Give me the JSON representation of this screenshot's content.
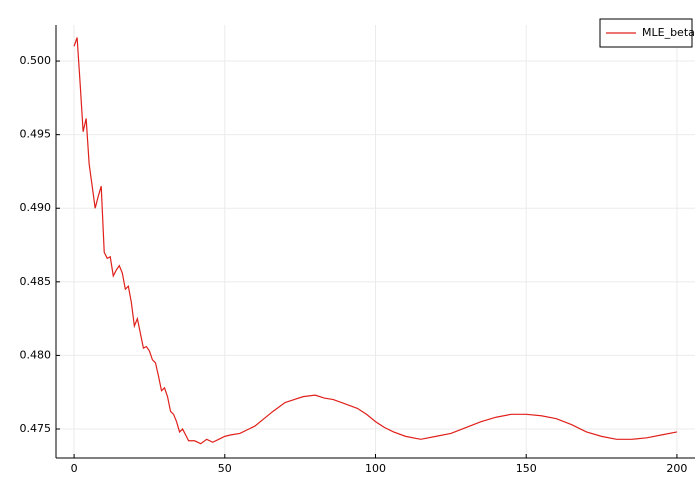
{
  "chart_data": {
    "type": "line",
    "x": [
      0,
      1,
      2,
      3,
      4,
      5,
      6,
      7,
      8,
      9,
      10,
      11,
      12,
      13,
      14,
      15,
      16,
      17,
      18,
      19,
      20,
      21,
      22,
      23,
      24,
      25,
      26,
      27,
      28,
      29,
      30,
      31,
      32,
      33,
      34,
      35,
      36,
      37,
      38,
      40,
      42,
      44,
      46,
      48,
      50,
      52,
      55,
      58,
      60,
      63,
      66,
      70,
      73,
      76,
      80,
      83,
      86,
      90,
      94,
      97,
      100,
      103,
      106,
      110,
      115,
      120,
      125,
      130,
      135,
      140,
      145,
      150,
      155,
      160,
      165,
      170,
      175,
      180,
      185,
      190,
      195,
      200
    ],
    "series": [
      {
        "name": "MLE_beta",
        "color": "#e0201b",
        "values": [
          0.501,
          0.5016,
          0.4985,
          0.4952,
          0.4961,
          0.493,
          0.4915,
          0.49,
          0.4908,
          0.4915,
          0.487,
          0.4866,
          0.4867,
          0.4854,
          0.4858,
          0.4861,
          0.4856,
          0.4845,
          0.4847,
          0.4836,
          0.482,
          0.4825,
          0.4815,
          0.4805,
          0.4806,
          0.4803,
          0.4797,
          0.4795,
          0.4786,
          0.4776,
          0.4778,
          0.4772,
          0.4762,
          0.476,
          0.4755,
          0.4748,
          0.475,
          0.4746,
          0.4742,
          0.4742,
          0.474,
          0.4743,
          0.4741,
          0.4743,
          0.4745,
          0.4746,
          0.4747,
          0.475,
          0.4752,
          0.4757,
          0.4762,
          0.4768,
          0.477,
          0.4772,
          0.4773,
          0.4771,
          0.477,
          0.4767,
          0.4764,
          0.476,
          0.4755,
          0.4751,
          0.4748,
          0.4745,
          0.4743,
          0.4745,
          0.4747,
          0.4751,
          0.4755,
          0.4758,
          0.476,
          0.476,
          0.4759,
          0.4757,
          0.4753,
          0.4748,
          0.4745,
          0.4743,
          0.4743,
          0.4744,
          0.4746,
          0.4748
        ]
      }
    ],
    "xlim": [
      -6,
      206
    ],
    "xticks": [
      0,
      50,
      100,
      150,
      200
    ],
    "ylim": [
      0.47303,
      0.50245
    ],
    "yticks": [
      0.475,
      {
        "value": 0.48,
        "label": "0.480"
      },
      0.485,
      {
        "value": 0.49,
        "label": "0.490"
      },
      0.495,
      {
        "value": 0.5,
        "label": "0.500"
      }
    ],
    "grid": true,
    "legend": "top-right"
  }
}
